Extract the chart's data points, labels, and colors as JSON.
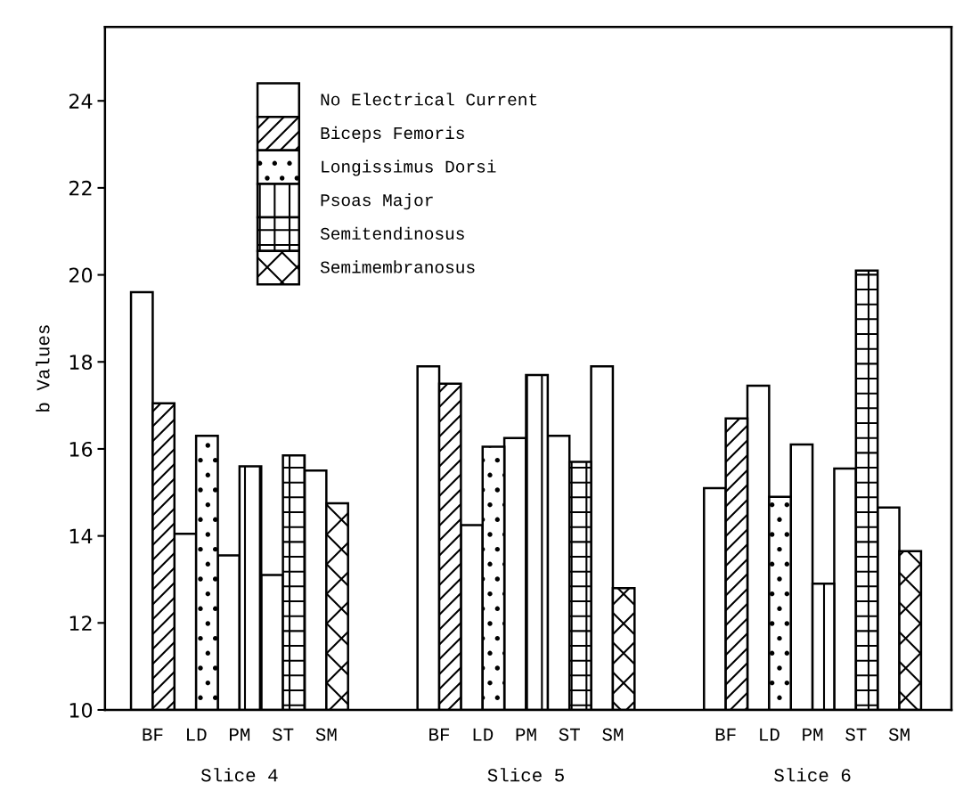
{
  "chart_data": {
    "type": "bar",
    "ylabel": "b Values",
    "categories": [
      "BF",
      "LD",
      "PM",
      "ST",
      "SM",
      "BF",
      "LD",
      "PM",
      "ST",
      "SM",
      "BF",
      "LD",
      "PM",
      "ST",
      "SM"
    ],
    "series": [
      {
        "name": "No Electrical Current",
        "color": "#ffffff",
        "values": [
          19.6,
          14.05,
          13.55,
          13.1,
          15.5,
          17.9,
          14.25,
          16.25,
          16.3,
          17.9,
          15.1,
          17.45,
          16.1,
          15.55,
          14.65
        ]
      },
      {
        "name": "Biceps Femoris",
        "color": "#000000",
        "values": [
          17.05,
          null,
          null,
          null,
          null,
          17.5,
          null,
          null,
          null,
          null,
          16.7,
          null,
          null,
          null,
          null
        ]
      },
      {
        "name": "Longissimus Dorsi",
        "color": "#000000",
        "values": [
          null,
          16.3,
          null,
          null,
          null,
          null,
          16.05,
          null,
          null,
          null,
          null,
          14.9,
          null,
          null,
          null
        ]
      },
      {
        "name": "Psoas Major",
        "color": "#000000",
        "values": [
          null,
          null,
          15.6,
          null,
          null,
          null,
          null,
          17.7,
          null,
          null,
          null,
          null,
          12.9,
          null,
          null
        ]
      },
      {
        "name": "Semitendinosus",
        "color": "#000000",
        "values": [
          null,
          null,
          null,
          15.85,
          null,
          null,
          null,
          null,
          15.7,
          null,
          null,
          null,
          null,
          20.1,
          null
        ]
      },
      {
        "name": "Semimembranosus",
        "color": "#000000",
        "values": [
          null,
          null,
          null,
          null,
          14.75,
          null,
          null,
          null,
          null,
          12.8,
          null,
          null,
          null,
          null,
          13.65
        ]
      }
    ],
    "ylim": [
      10,
      25.7
    ],
    "yticks": [
      10,
      12,
      14,
      16,
      18,
      20,
      22,
      24
    ],
    "legend": "top left",
    "annotations": [
      "Slice 4",
      "Slice 5",
      "Slice 6"
    ]
  }
}
